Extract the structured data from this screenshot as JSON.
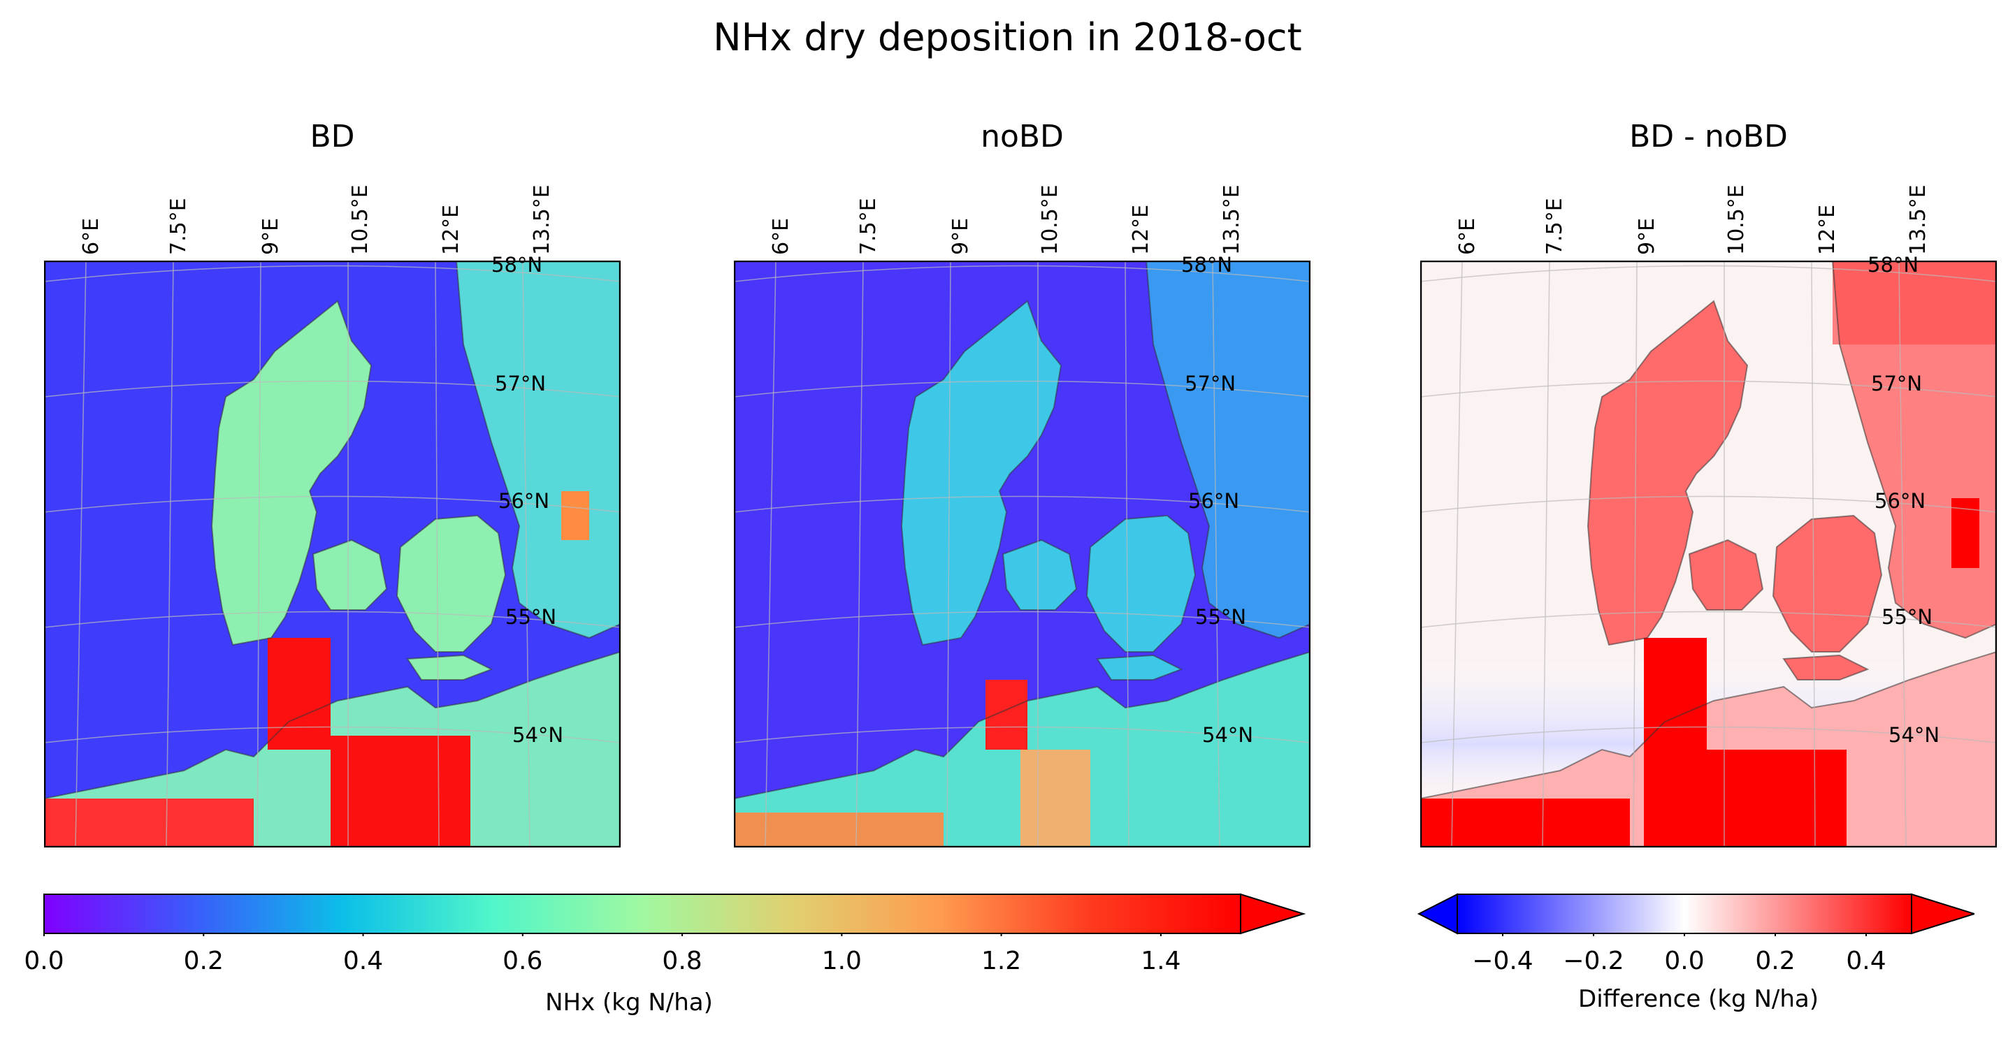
{
  "figure": {
    "title": "NHx dry deposition in 2018-oct"
  },
  "panels": [
    {
      "id": "bd",
      "title": "BD",
      "colormap": "rainbow"
    },
    {
      "id": "nobd",
      "title": "noBD",
      "colormap": "rainbow"
    },
    {
      "id": "diff",
      "title": "BD - noBD",
      "colormap": "bwr"
    }
  ],
  "lon_labels": [
    "6°E",
    "7.5°E",
    "9°E",
    "10.5°E",
    "12°E",
    "13.5°E"
  ],
  "lat_labels": [
    "58°N",
    "57°N",
    "56°N",
    "55°N",
    "54°N"
  ],
  "colorbars": {
    "nhx": {
      "label": "NHx (kg N/ha)",
      "ticks": [
        "0.0",
        "0.2",
        "0.4",
        "0.6",
        "0.8",
        "1.0",
        "1.2",
        "1.4"
      ],
      "min": 0.0,
      "max": 1.5,
      "extend": "max",
      "colors": [
        "#8000ff",
        "#3a5cfb",
        "#0cbfe8",
        "#51f6c9",
        "#a0f8a0",
        "#e0d070",
        "#ff9a50",
        "#ff3a1f",
        "#ff0000"
      ]
    },
    "diff": {
      "label": "Difference (kg N/ha)",
      "ticks": [
        "−0.4",
        "−0.2",
        "0.0",
        "0.2",
        "0.4"
      ],
      "min": -0.5,
      "max": 0.5,
      "extend": "both",
      "colors": [
        "#0000ff",
        "#8080ff",
        "#ffffff",
        "#ff8080",
        "#ff0000"
      ]
    }
  }
}
